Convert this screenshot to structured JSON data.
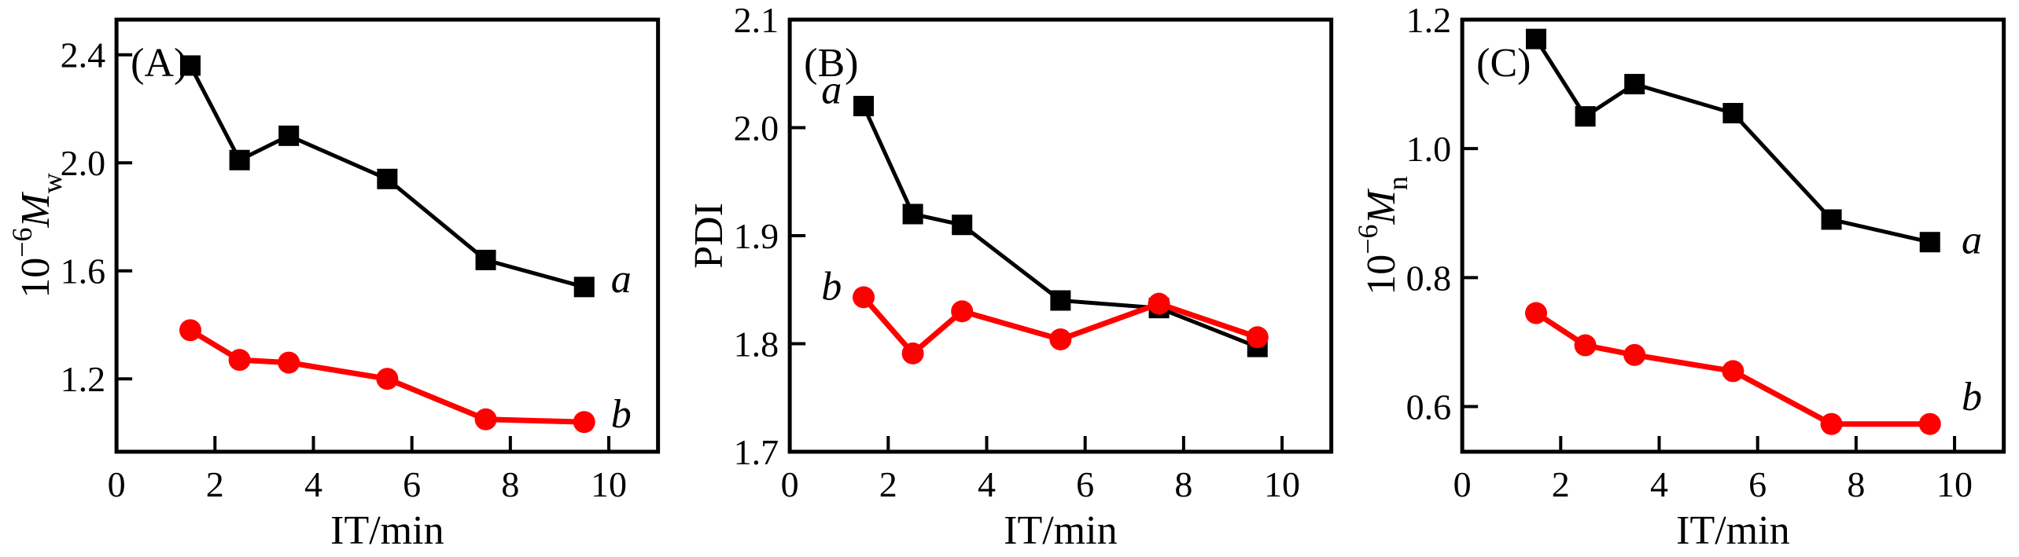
{
  "figure": {
    "background": "#ffffff",
    "axis_color": "#000000"
  },
  "chart_data": [
    {
      "type": "line",
      "panel_label": "(A)",
      "xlabel": "IT/min",
      "ylabel": {
        "prefix": "10",
        "superscript": "−6",
        "symbol": "M",
        "subscript": "w"
      },
      "x": [
        1.5,
        2.5,
        3.5,
        5.5,
        7.5,
        9.5
      ],
      "series": [
        {
          "name": "a",
          "color": "#000000",
          "marker": "square",
          "values": [
            2.36,
            2.01,
            2.1,
            1.94,
            1.64,
            1.54
          ]
        },
        {
          "name": "b",
          "color": "#ff0000",
          "marker": "circle",
          "values": [
            1.38,
            1.27,
            1.26,
            1.2,
            1.05,
            1.04
          ]
        }
      ],
      "xlim": [
        0,
        11
      ],
      "xticks": [
        0,
        2,
        4,
        6,
        8,
        10
      ],
      "xtick_labels": [
        "0",
        "2",
        "4",
        "6",
        "8",
        "10"
      ],
      "ylim": [
        0.93,
        2.53
      ],
      "yticks": [
        1.2,
        1.6,
        2.0,
        2.4
      ],
      "ytick_labels": [
        "1.2",
        "1.6",
        "2.0",
        "2.4"
      ],
      "grid": false,
      "legend": "inline-letters",
      "annotations": [
        {
          "text": "a",
          "x": 10.25,
          "y": 1.57
        },
        {
          "text": "b",
          "x": 10.25,
          "y": 1.07
        }
      ]
    },
    {
      "type": "line",
      "panel_label": "(B)",
      "xlabel": "IT/min",
      "ylabel": {
        "text": "PDI"
      },
      "x": [
        1.5,
        2.5,
        3.5,
        5.5,
        7.5,
        9.5
      ],
      "series": [
        {
          "name": "a",
          "color": "#000000",
          "marker": "square",
          "values": [
            2.02,
            1.92,
            1.91,
            1.84,
            1.833,
            1.797
          ]
        },
        {
          "name": "b",
          "color": "#ff0000",
          "marker": "circle",
          "values": [
            1.843,
            1.791,
            1.83,
            1.804,
            1.837,
            1.806
          ]
        }
      ],
      "xlim": [
        0,
        11
      ],
      "xticks": [
        0,
        2,
        4,
        6,
        8,
        10
      ],
      "xtick_labels": [
        "0",
        "2",
        "4",
        "6",
        "8",
        "10"
      ],
      "ylim": [
        1.7,
        2.1
      ],
      "yticks": [
        1.7,
        1.8,
        1.9,
        2.0,
        2.1
      ],
      "ytick_labels": [
        "1.7",
        "1.8",
        "1.9",
        "2.0",
        "2.1"
      ],
      "grid": false,
      "legend": "inline-letters",
      "annotations": [
        {
          "text": "a",
          "x": 0.85,
          "y": 2.035
        },
        {
          "text": "b",
          "x": 0.85,
          "y": 1.853
        }
      ]
    },
    {
      "type": "line",
      "panel_label": "(C)",
      "xlabel": "IT/min",
      "ylabel": {
        "prefix": "10",
        "superscript": "−6",
        "symbol": "M",
        "subscript": "n"
      },
      "x": [
        1.5,
        2.5,
        3.5,
        5.5,
        7.5,
        9.5
      ],
      "series": [
        {
          "name": "a",
          "color": "#000000",
          "marker": "square",
          "values": [
            1.17,
            1.05,
            1.1,
            1.055,
            0.89,
            0.855
          ]
        },
        {
          "name": "b",
          "color": "#ff0000",
          "marker": "circle",
          "values": [
            0.745,
            0.695,
            0.68,
            0.655,
            0.573,
            0.573
          ]
        }
      ],
      "xlim": [
        0,
        11
      ],
      "xticks": [
        0,
        2,
        4,
        6,
        8,
        10
      ],
      "xtick_labels": [
        "0",
        "2",
        "4",
        "6",
        "8",
        "10"
      ],
      "ylim": [
        0.53,
        1.2
      ],
      "yticks": [
        0.6,
        0.8,
        1.0,
        1.2
      ],
      "ytick_labels": [
        "0.6",
        "0.8",
        "1.0",
        "1.2"
      ],
      "grid": false,
      "legend": "inline-letters",
      "annotations": [
        {
          "text": "a",
          "x": 10.35,
          "y": 0.858
        },
        {
          "text": "b",
          "x": 10.35,
          "y": 0.615
        }
      ]
    }
  ]
}
